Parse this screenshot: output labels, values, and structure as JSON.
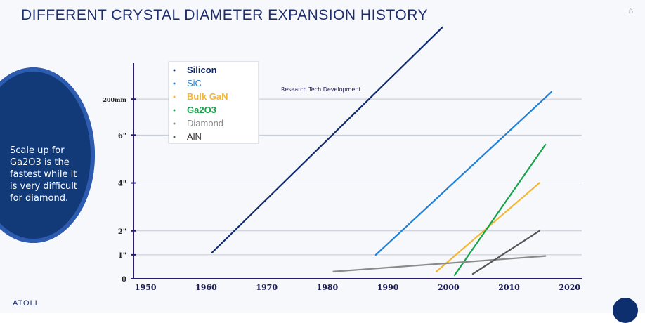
{
  "slide": {
    "title": "DIFFERENT CRYSTAL DIAMETER EXPANSION HISTORY",
    "callout_text": "Scale up for\nGa2O3 is the\nfastest while it\nis very difficult\nfor diamond.",
    "footer_logo": "ATOLL"
  },
  "chart_data": {
    "type": "line",
    "title": "",
    "xlabel": "",
    "ylabel": "",
    "xlim": [
      1948,
      2022
    ],
    "ylim": [
      0,
      9
    ],
    "x_ticks": [
      1950,
      1960,
      1970,
      1980,
      1990,
      2000,
      2010,
      2020
    ],
    "y_ticks": [
      {
        "value": 0,
        "label": "0"
      },
      {
        "value": 1,
        "label": "1\""
      },
      {
        "value": 2,
        "label": "2\""
      },
      {
        "value": 4,
        "label": "4\""
      },
      {
        "value": 6,
        "label": "6\""
      },
      {
        "value": 7.5,
        "label": "200mm"
      }
    ],
    "annotation": "Research Tech Development",
    "legend_placement": "top-center",
    "series": [
      {
        "name": "Silicon",
        "color": "#0f2a6e",
        "points": [
          [
            1961,
            1.1
          ],
          [
            1999,
            10.5
          ]
        ]
      },
      {
        "name": "SiC",
        "color": "#1f7fd6",
        "points": [
          [
            1988,
            1.0
          ],
          [
            2017,
            7.8
          ]
        ]
      },
      {
        "name": "Bulk GaN",
        "color": "#f5b731",
        "points": [
          [
            1998,
            0.3
          ],
          [
            2015,
            4.0
          ]
        ]
      },
      {
        "name": "Ga2O3",
        "color": "#17a34a",
        "points": [
          [
            2001,
            0.15
          ],
          [
            2016,
            5.6
          ]
        ]
      },
      {
        "name": "Diamond",
        "color": "#8a8a8a",
        "points": [
          [
            1981,
            0.3
          ],
          [
            2016,
            0.95
          ]
        ]
      },
      {
        "name": "AlN",
        "color": "#555555",
        "points": [
          [
            2004,
            0.2
          ],
          [
            2015,
            2.0
          ]
        ]
      }
    ]
  }
}
